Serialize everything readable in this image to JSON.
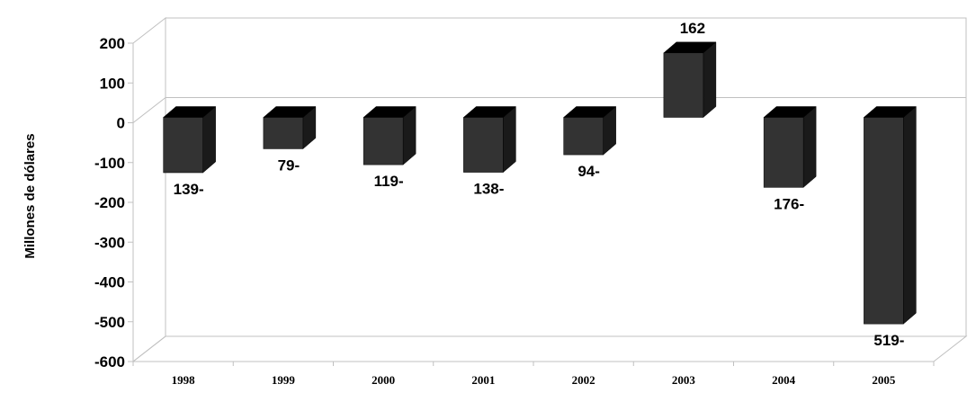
{
  "chart_data": {
    "type": "bar",
    "title": "",
    "xlabel": "",
    "ylabel": "Millones de dólares",
    "categories": [
      "1998",
      "1999",
      "2000",
      "2001",
      "2002",
      "2003",
      "2004",
      "2005"
    ],
    "values": [
      -139,
      -79,
      -119,
      -138,
      -94,
      162,
      -176,
      -519
    ],
    "data_labels": [
      "139-",
      "79-",
      "119-",
      "138-",
      "94-",
      "162",
      "176-",
      "519-"
    ],
    "yticks": [
      "200",
      "100",
      "0",
      "-100",
      "-200",
      "-300",
      "-400",
      "-500",
      "-600"
    ],
    "ylim": [
      -600,
      200
    ],
    "grid": false,
    "style": "3d-column",
    "colors": {
      "bar_front": "#333333",
      "bar_top": "#000000",
      "bar_side": "#1a1a1a",
      "frame": "#c0c0c0"
    }
  }
}
